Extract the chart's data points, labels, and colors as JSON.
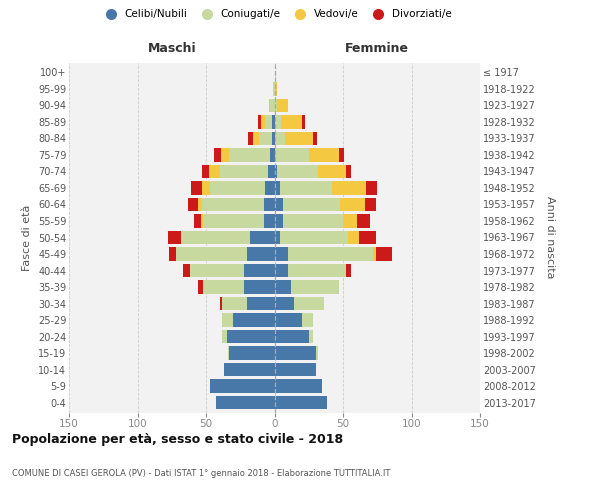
{
  "age_groups": [
    "0-4",
    "5-9",
    "10-14",
    "15-19",
    "20-24",
    "25-29",
    "30-34",
    "35-39",
    "40-44",
    "45-49",
    "50-54",
    "55-59",
    "60-64",
    "65-69",
    "70-74",
    "75-79",
    "80-84",
    "85-89",
    "90-94",
    "95-99",
    "100+"
  ],
  "birth_years": [
    "2013-2017",
    "2008-2012",
    "2003-2007",
    "1998-2002",
    "1993-1997",
    "1988-1992",
    "1983-1987",
    "1978-1982",
    "1973-1977",
    "1968-1972",
    "1963-1967",
    "1958-1962",
    "1953-1957",
    "1948-1952",
    "1943-1947",
    "1938-1942",
    "1933-1937",
    "1928-1932",
    "1923-1927",
    "1918-1922",
    "≤ 1917"
  ],
  "maschi": {
    "celibi": [
      43,
      47,
      37,
      33,
      35,
      30,
      20,
      22,
      22,
      20,
      18,
      8,
      8,
      7,
      5,
      3,
      2,
      2,
      0,
      0,
      0
    ],
    "coniugati": [
      0,
      0,
      0,
      1,
      3,
      8,
      18,
      30,
      40,
      52,
      50,
      44,
      45,
      40,
      35,
      30,
      9,
      5,
      3,
      1,
      0
    ],
    "vedovi": [
      0,
      0,
      0,
      0,
      0,
      0,
      0,
      0,
      0,
      0,
      0,
      2,
      3,
      6,
      8,
      6,
      5,
      3,
      1,
      0,
      0
    ],
    "divorziati": [
      0,
      0,
      0,
      0,
      0,
      0,
      2,
      4,
      5,
      5,
      10,
      5,
      7,
      8,
      5,
      5,
      3,
      2,
      0,
      0,
      0
    ]
  },
  "femmine": {
    "nubili": [
      38,
      35,
      30,
      30,
      25,
      20,
      14,
      12,
      10,
      10,
      4,
      6,
      6,
      4,
      2,
      0,
      0,
      0,
      0,
      0,
      0
    ],
    "coniugate": [
      0,
      0,
      0,
      2,
      3,
      8,
      22,
      35,
      42,
      62,
      50,
      44,
      42,
      38,
      30,
      25,
      8,
      5,
      2,
      0,
      0
    ],
    "vedove": [
      0,
      0,
      0,
      0,
      0,
      0,
      0,
      0,
      0,
      2,
      8,
      10,
      18,
      25,
      20,
      22,
      20,
      15,
      8,
      2,
      0
    ],
    "divorziate": [
      0,
      0,
      0,
      0,
      0,
      0,
      0,
      0,
      4,
      12,
      12,
      10,
      8,
      8,
      4,
      4,
      3,
      2,
      0,
      0,
      0
    ]
  },
  "colors": {
    "celibi": "#4878a8",
    "coniugati": "#c8d9a0",
    "vedovi": "#f5c842",
    "divorziati": "#cc1a1a"
  },
  "xlim": 150,
  "xticks": [
    -150,
    -100,
    -50,
    0,
    50,
    100,
    150
  ],
  "xtick_labels": [
    "150",
    "100",
    "50",
    "0",
    "50",
    "100",
    "150"
  ],
  "title": "Popolazione per età, sesso e stato civile - 2018",
  "subtitle": "COMUNE DI CASEI GEROLA (PV) - Dati ISTAT 1° gennaio 2018 - Elaborazione TUTTITALIA.IT",
  "ylabel_left": "Fasce di età",
  "ylabel_right": "Anni di nascita",
  "label_maschi": "Maschi",
  "label_femmine": "Femmine",
  "legend_labels": [
    "Celibi/Nubili",
    "Coniugati/e",
    "Vedovi/e",
    "Divorziati/e"
  ],
  "bg_color": "#f2f2f2",
  "bar_height": 0.8
}
